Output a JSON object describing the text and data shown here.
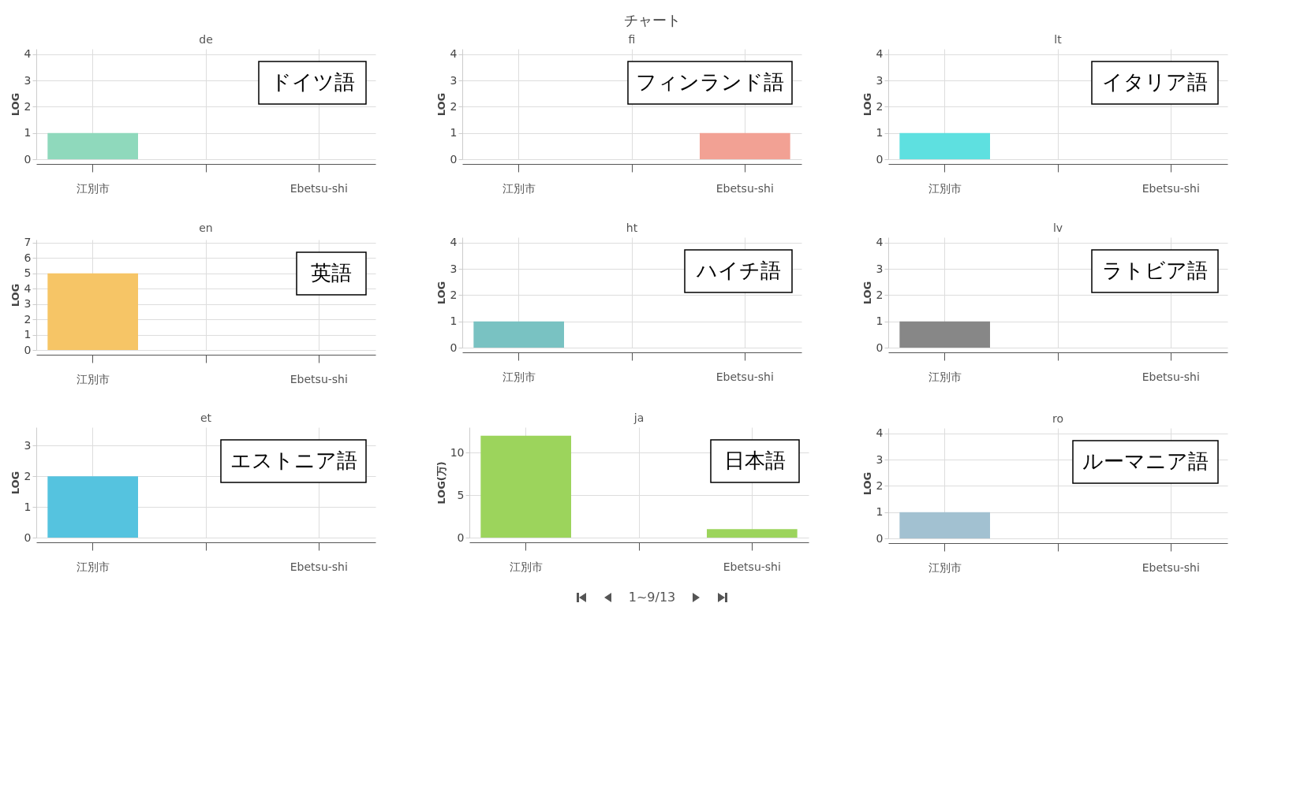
{
  "chart_data": [
    {
      "type": "bar",
      "title": "de",
      "ylabel": "LOG",
      "categories": [
        "江別市",
        null,
        "Ebetsu-shi"
      ],
      "values": [
        1,
        null,
        null
      ],
      "color": "#8fd9bc",
      "ylim": [
        0,
        4.2
      ],
      "yticks": [
        0,
        1,
        2,
        3,
        4
      ],
      "grid": true,
      "annotations": [
        "ドイツ語",
        "チャート"
      ]
    },
    {
      "type": "bar",
      "title": "fi",
      "ylabel": "LOG",
      "categories": [
        "江別市",
        null,
        "Ebetsu-shi"
      ],
      "values": [
        null,
        null,
        1
      ],
      "color": "#f2a194",
      "ylim": [
        0,
        4.2
      ],
      "yticks": [
        0,
        1,
        2,
        3,
        4
      ],
      "grid": true,
      "annotations": [
        "フィンランド語"
      ]
    },
    {
      "type": "bar",
      "title": "lt",
      "ylabel": "LOG",
      "categories": [
        "江別市",
        null,
        "Ebetsu-shi"
      ],
      "values": [
        1,
        null,
        null
      ],
      "color": "#5ee0e0",
      "ylim": [
        0,
        4.2
      ],
      "yticks": [
        0,
        1,
        2,
        3,
        4
      ],
      "grid": true,
      "annotations": [
        "イタリア語"
      ]
    },
    {
      "type": "bar",
      "title": "en",
      "ylabel": "LOG",
      "categories": [
        "江別市",
        null,
        "Ebetsu-shi"
      ],
      "values": [
        5,
        null,
        null
      ],
      "color": "#f6c566",
      "ylim": [
        0,
        7.2
      ],
      "yticks": [
        0,
        1,
        2,
        3,
        4,
        5,
        6,
        7
      ],
      "grid": true,
      "annotations": [
        "英語"
      ]
    },
    {
      "type": "bar",
      "title": "ht",
      "ylabel": "LOG",
      "categories": [
        "江別市",
        null,
        "Ebetsu-shi"
      ],
      "values": [
        1,
        null,
        null
      ],
      "color": "#79c2c2",
      "ylim": [
        0,
        4.2
      ],
      "yticks": [
        0,
        1,
        2,
        3,
        4
      ],
      "grid": true,
      "annotations": [
        "ハイチ語"
      ]
    },
    {
      "type": "bar",
      "title": "lv",
      "ylabel": "LOG",
      "categories": [
        "江別市",
        null,
        "Ebetsu-shi"
      ],
      "values": [
        1,
        null,
        null
      ],
      "color": "#878787",
      "ylim": [
        0,
        4.2
      ],
      "yticks": [
        0,
        1,
        2,
        3,
        4
      ],
      "grid": true,
      "annotations": [
        "ラトビア語"
      ]
    },
    {
      "type": "bar",
      "title": "et",
      "ylabel": "LOG",
      "categories": [
        "江別市",
        null,
        "Ebetsu-shi"
      ],
      "values": [
        2,
        null,
        null
      ],
      "color": "#55c3df",
      "ylim": [
        0,
        3.6
      ],
      "yticks": [
        0,
        1,
        2,
        3
      ],
      "grid": true,
      "annotations": [
        "エストニア語"
      ]
    },
    {
      "type": "bar",
      "title": "ja",
      "ylabel": "LOG(万)",
      "categories": [
        "江別市",
        null,
        "Ebetsu-shi"
      ],
      "values": [
        12,
        null,
        1
      ],
      "color": "#9cd45c",
      "ylim": [
        0,
        13
      ],
      "yticks": [
        0,
        5,
        10
      ],
      "grid": true,
      "annotations": [
        "日本語"
      ]
    },
    {
      "type": "bar",
      "title": "ro",
      "ylabel": "LOG",
      "categories": [
        "江別市",
        null,
        "Ebetsu-shi"
      ],
      "values": [
        1,
        null,
        null
      ],
      "color": "#a2c1d1",
      "ylim": [
        0,
        4.2
      ],
      "yticks": [
        0,
        1,
        2,
        3,
        4
      ],
      "grid": true,
      "annotations": [
        "ルーマニア語",
        "1~9/13"
      ]
    }
  ]
}
